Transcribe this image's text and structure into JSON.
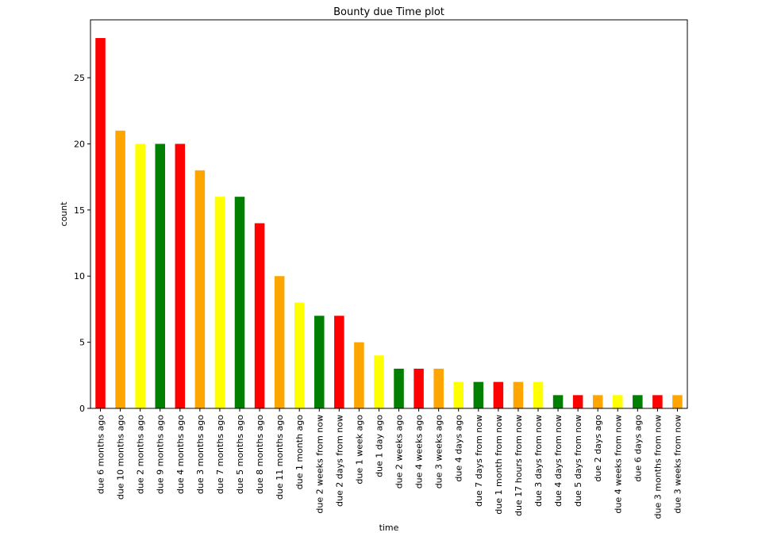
{
  "chart_data": {
    "type": "bar",
    "title": "Bounty due Time plot",
    "xlabel": "time",
    "ylabel": "count",
    "ylim": [
      0,
      28
    ],
    "yticks": [
      0,
      5,
      10,
      15,
      20,
      25
    ],
    "grid": false,
    "legend": "none",
    "categories": [
      "due 6 months ago",
      "due 10 months ago",
      "due 2 months ago",
      "due 9 months ago",
      "due 4 months ago",
      "due 3 months ago",
      "due 7 months ago",
      "due 5 months ago",
      "due 8 months ago",
      "due 11 months ago",
      "due 1 month ago",
      "due 2 weeks from now",
      "due 2 days from now",
      "due 1 week ago",
      "due 1 day ago",
      "due 2 weeks ago",
      "due 4 weeks ago",
      "due 3 weeks ago",
      "due 4 days ago",
      "due 7 days from now",
      "due 1 month from now",
      "due 17 hours from now",
      "due 3 days from now",
      "due 4 days from now",
      "due 5 days from now",
      "due 2 days ago",
      "due 4 weeks from now",
      "due 6 days ago",
      "due 3 months from now",
      "due 3 weeks from now"
    ],
    "values": [
      28,
      21,
      20,
      20,
      20,
      18,
      16,
      16,
      14,
      10,
      8,
      7,
      7,
      5,
      4,
      3,
      3,
      3,
      2,
      2,
      2,
      2,
      2,
      1,
      1,
      1,
      1,
      1,
      1,
      1
    ],
    "bar_colors": [
      "#ff0000",
      "#ffa500",
      "#ffff00",
      "#008000"
    ]
  }
}
